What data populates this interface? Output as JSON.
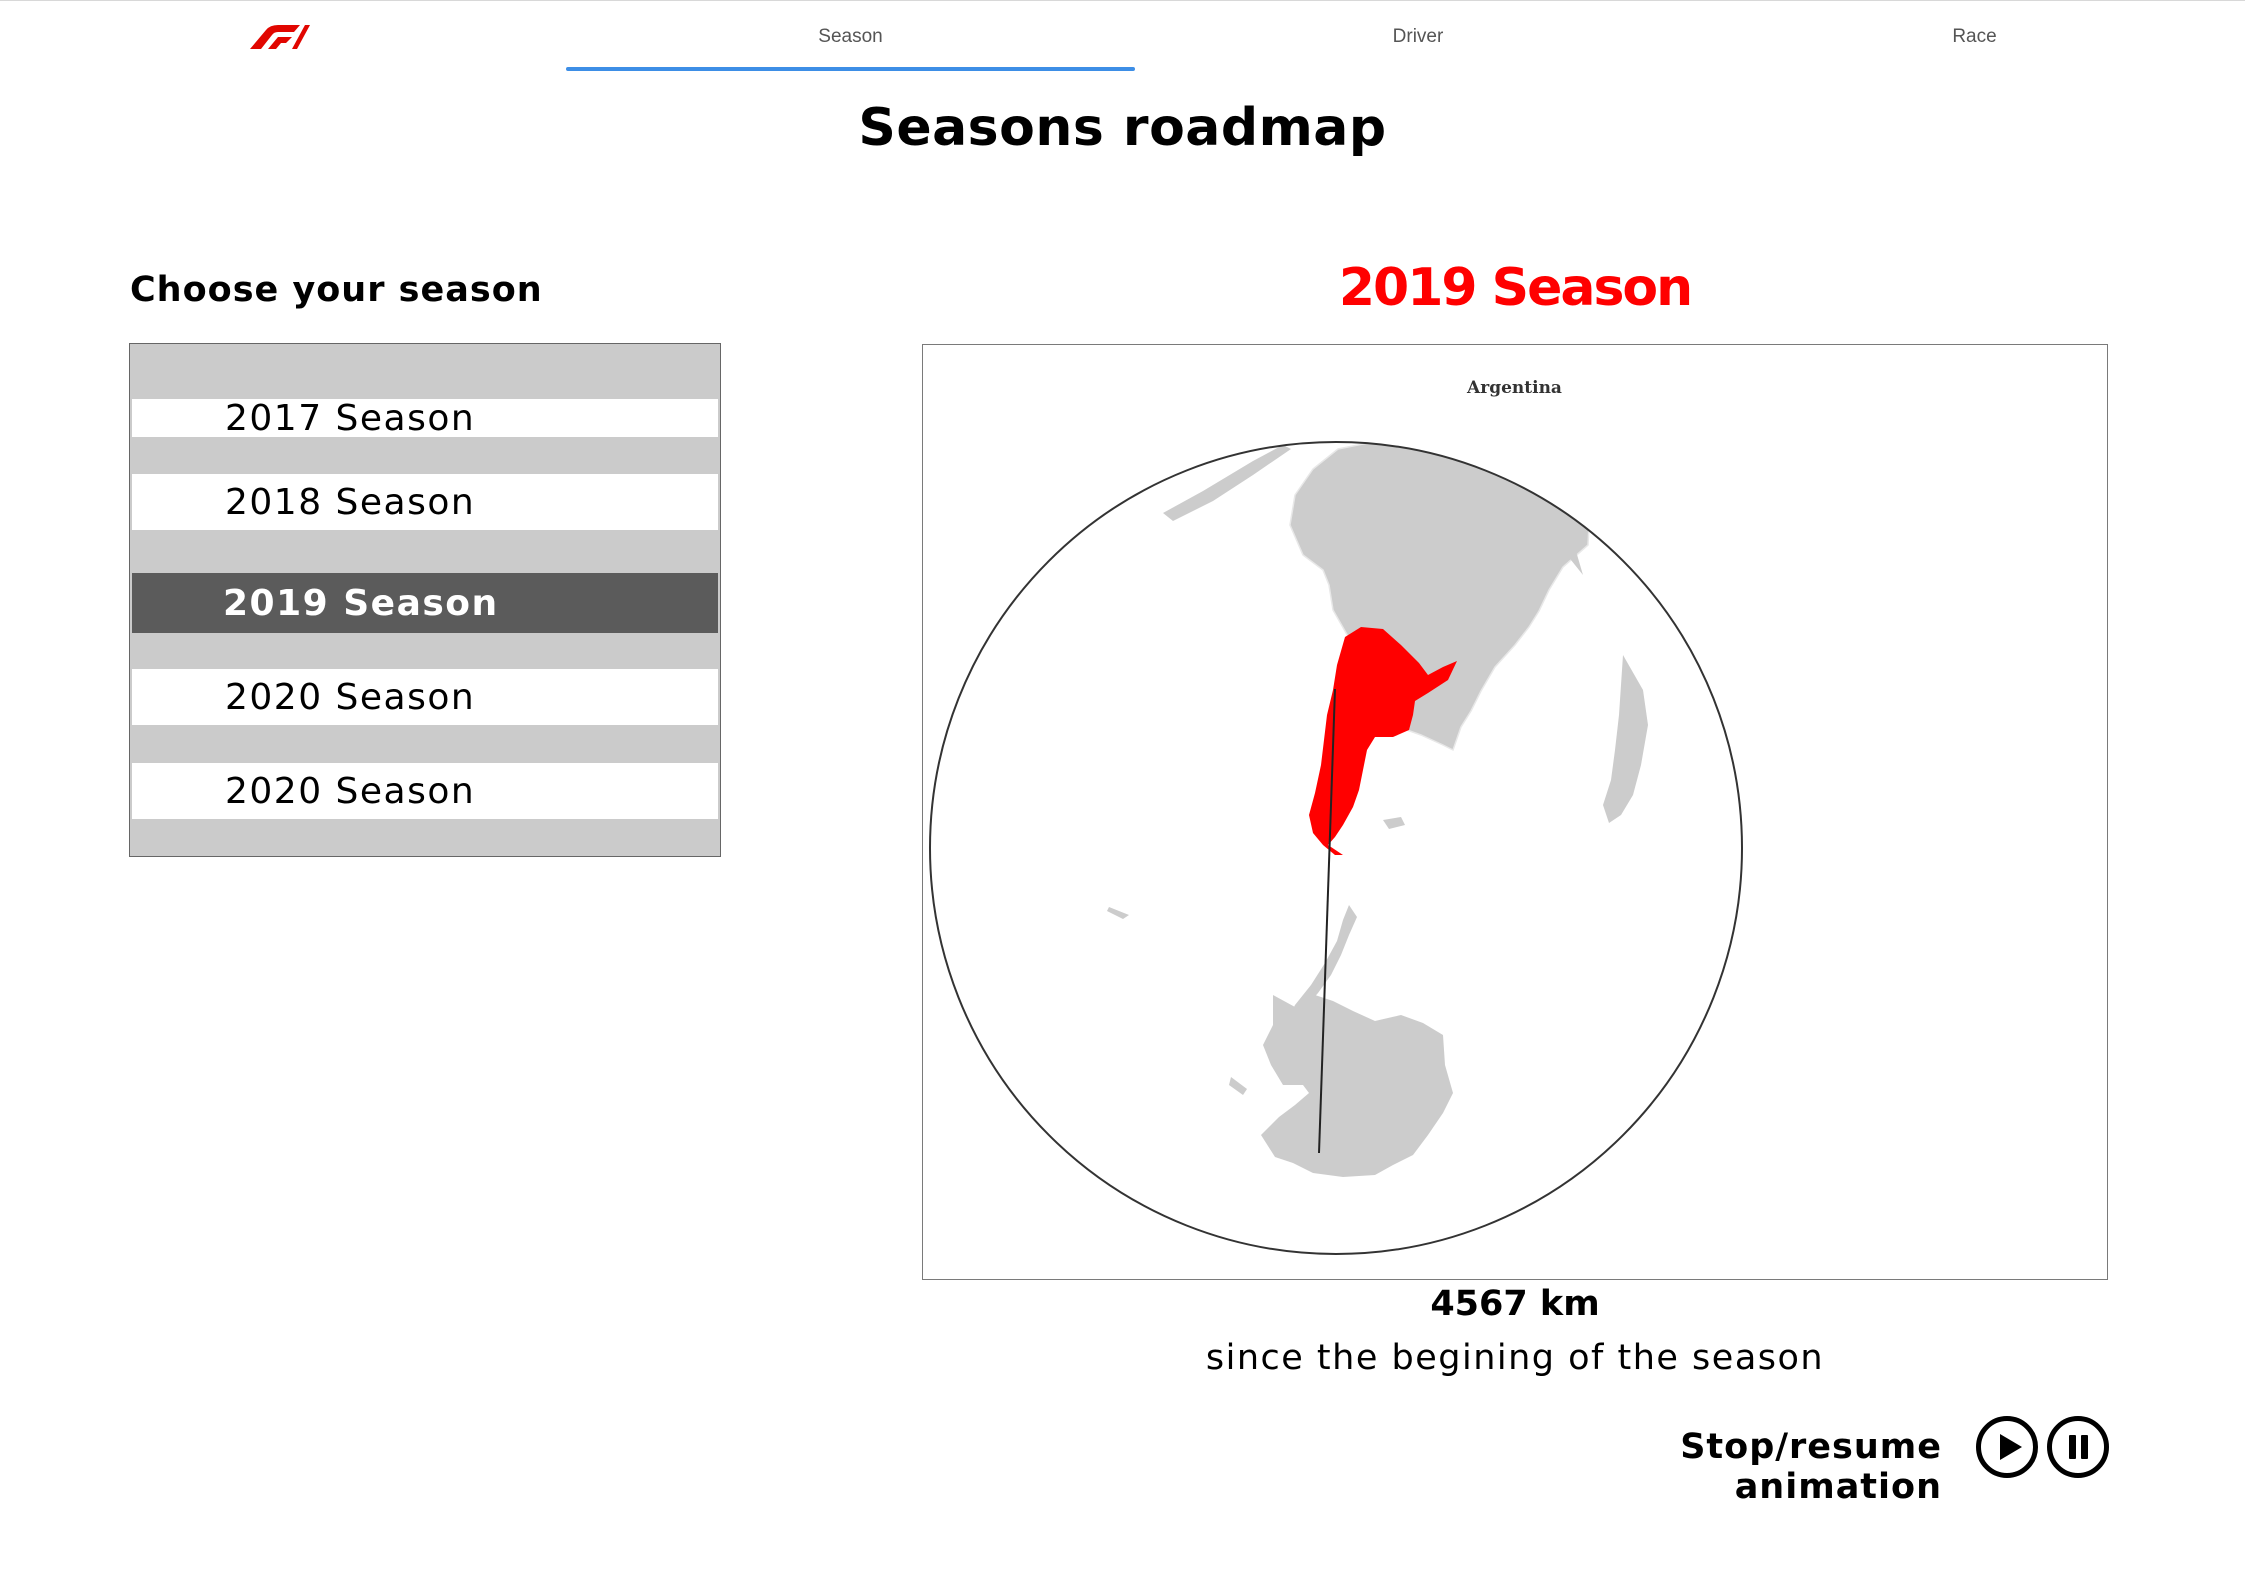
{
  "nav": {
    "logo_icon": "f1-logo-icon",
    "tabs": [
      {
        "label": "Season",
        "active": true
      },
      {
        "label": "Driver",
        "active": false
      },
      {
        "label": "Race",
        "active": false
      }
    ],
    "accent_color": "#3d8ee6"
  },
  "page_title": "Seasons roadmap",
  "season_picker": {
    "title": "Choose your season",
    "items": [
      {
        "label": "2017 Season",
        "selected": false
      },
      {
        "label": "2018 Season",
        "selected": false
      },
      {
        "label": "2019 Season",
        "selected": true
      },
      {
        "label": "2020 Season",
        "selected": false
      },
      {
        "label": "2020 Season",
        "selected": false
      }
    ]
  },
  "map": {
    "heading": "2019 Season",
    "heading_color": "#ff0000",
    "country_label": "Argentina",
    "highlight_color": "#ff0000",
    "land_color": "#cccccc"
  },
  "stats": {
    "distance": "4567 km",
    "caption": "since the begining of the season"
  },
  "animation": {
    "label": "Stop/resume animation",
    "play_icon": "play-circle-icon",
    "pause_icon": "pause-circle-icon"
  }
}
